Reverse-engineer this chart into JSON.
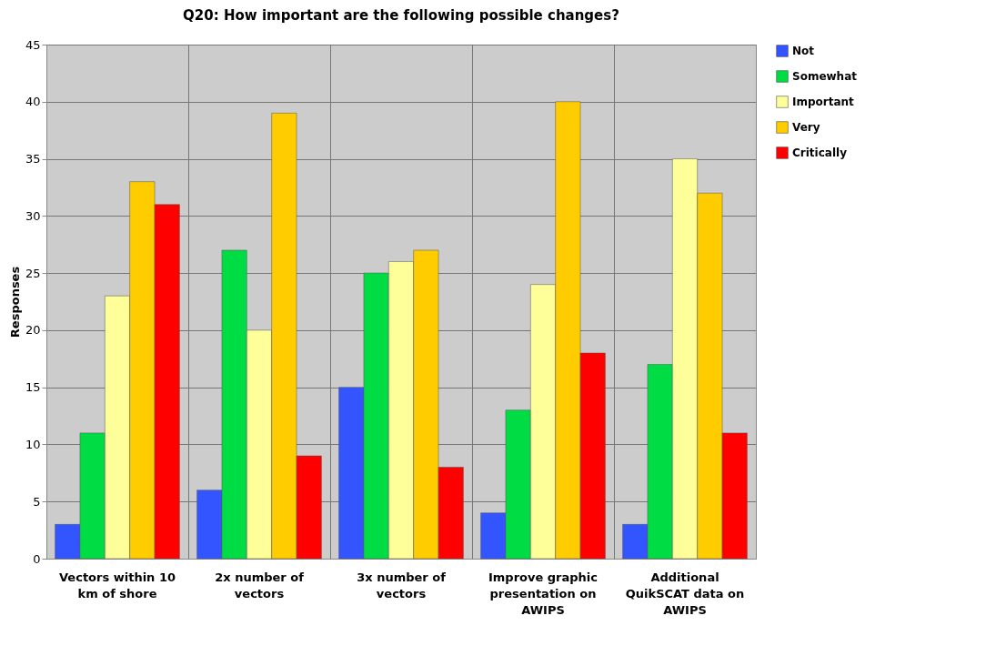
{
  "chart_data": {
    "type": "bar",
    "title": "Q20: How important are the following possible changes?",
    "ylabel": "Responses",
    "categories": [
      "Vectors within 10 km of shore",
      "2x number of vectors",
      "3x number of vectors",
      "Improve graphic presentation on AWIPS",
      "Additional QuikSCAT data on AWIPS"
    ],
    "series": [
      {
        "name": "Not",
        "color": "#3355ff",
        "values": [
          3,
          6,
          15,
          4,
          3
        ]
      },
      {
        "name": "Somewhat",
        "color": "#00dd44",
        "values": [
          11,
          27,
          25,
          13,
          17
        ]
      },
      {
        "name": "Important",
        "color": "#ffff99",
        "values": [
          23,
          20,
          26,
          24,
          35
        ]
      },
      {
        "name": "Very",
        "color": "#ffcc00",
        "values": [
          33,
          39,
          27,
          40,
          32
        ]
      },
      {
        "name": "Critically",
        "color": "#ff0000",
        "values": [
          31,
          9,
          8,
          18,
          11
        ]
      }
    ],
    "ylim": [
      0,
      45
    ],
    "yticks": [
      0,
      5,
      10,
      15,
      20,
      25,
      30,
      35,
      40,
      45
    ],
    "grid": true,
    "legend": "right"
  }
}
